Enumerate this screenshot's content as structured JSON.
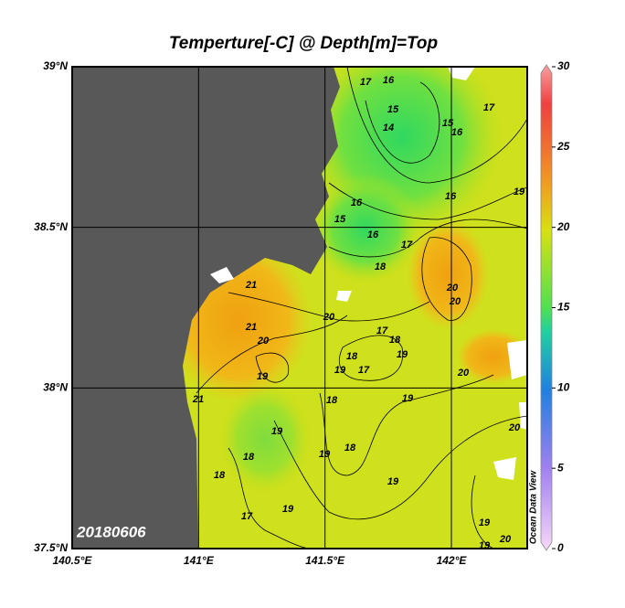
{
  "title": "Temperture[-C] @ Depth[m]=Top",
  "map": {
    "lonlim": [
      140.5,
      142.3
    ],
    "latlim": [
      37.5,
      39
    ],
    "lon_ticks": [
      {
        "value": 140.5,
        "label": "140.5°E"
      },
      {
        "value": 141,
        "label": "141°E"
      },
      {
        "value": 141.5,
        "label": "141.5°E"
      },
      {
        "value": 142,
        "label": "142°E"
      }
    ],
    "lat_ticks": [
      {
        "value": 37.5,
        "label": "37.5°N"
      },
      {
        "value": 38,
        "label": "38°N"
      },
      {
        "value": 38.5,
        "label": "38.5°N"
      },
      {
        "value": 39,
        "label": "39°N"
      }
    ],
    "grid": true,
    "contour_labels": [
      17,
      16,
      15,
      14,
      15,
      16,
      17,
      19,
      16,
      15,
      16,
      17,
      16,
      18,
      20,
      20,
      21,
      20,
      21,
      20,
      19,
      17,
      18,
      19,
      18,
      17,
      19,
      20,
      21,
      18,
      19,
      19,
      18,
      18,
      19,
      18,
      20,
      19,
      17,
      19,
      19,
      20,
      19
    ]
  },
  "colorbar": {
    "lim": [
      0,
      30
    ],
    "ticks": [
      0,
      5,
      10,
      15,
      20,
      25,
      30
    ]
  },
  "date": "20180606",
  "watermark": "Ocean Data View"
}
